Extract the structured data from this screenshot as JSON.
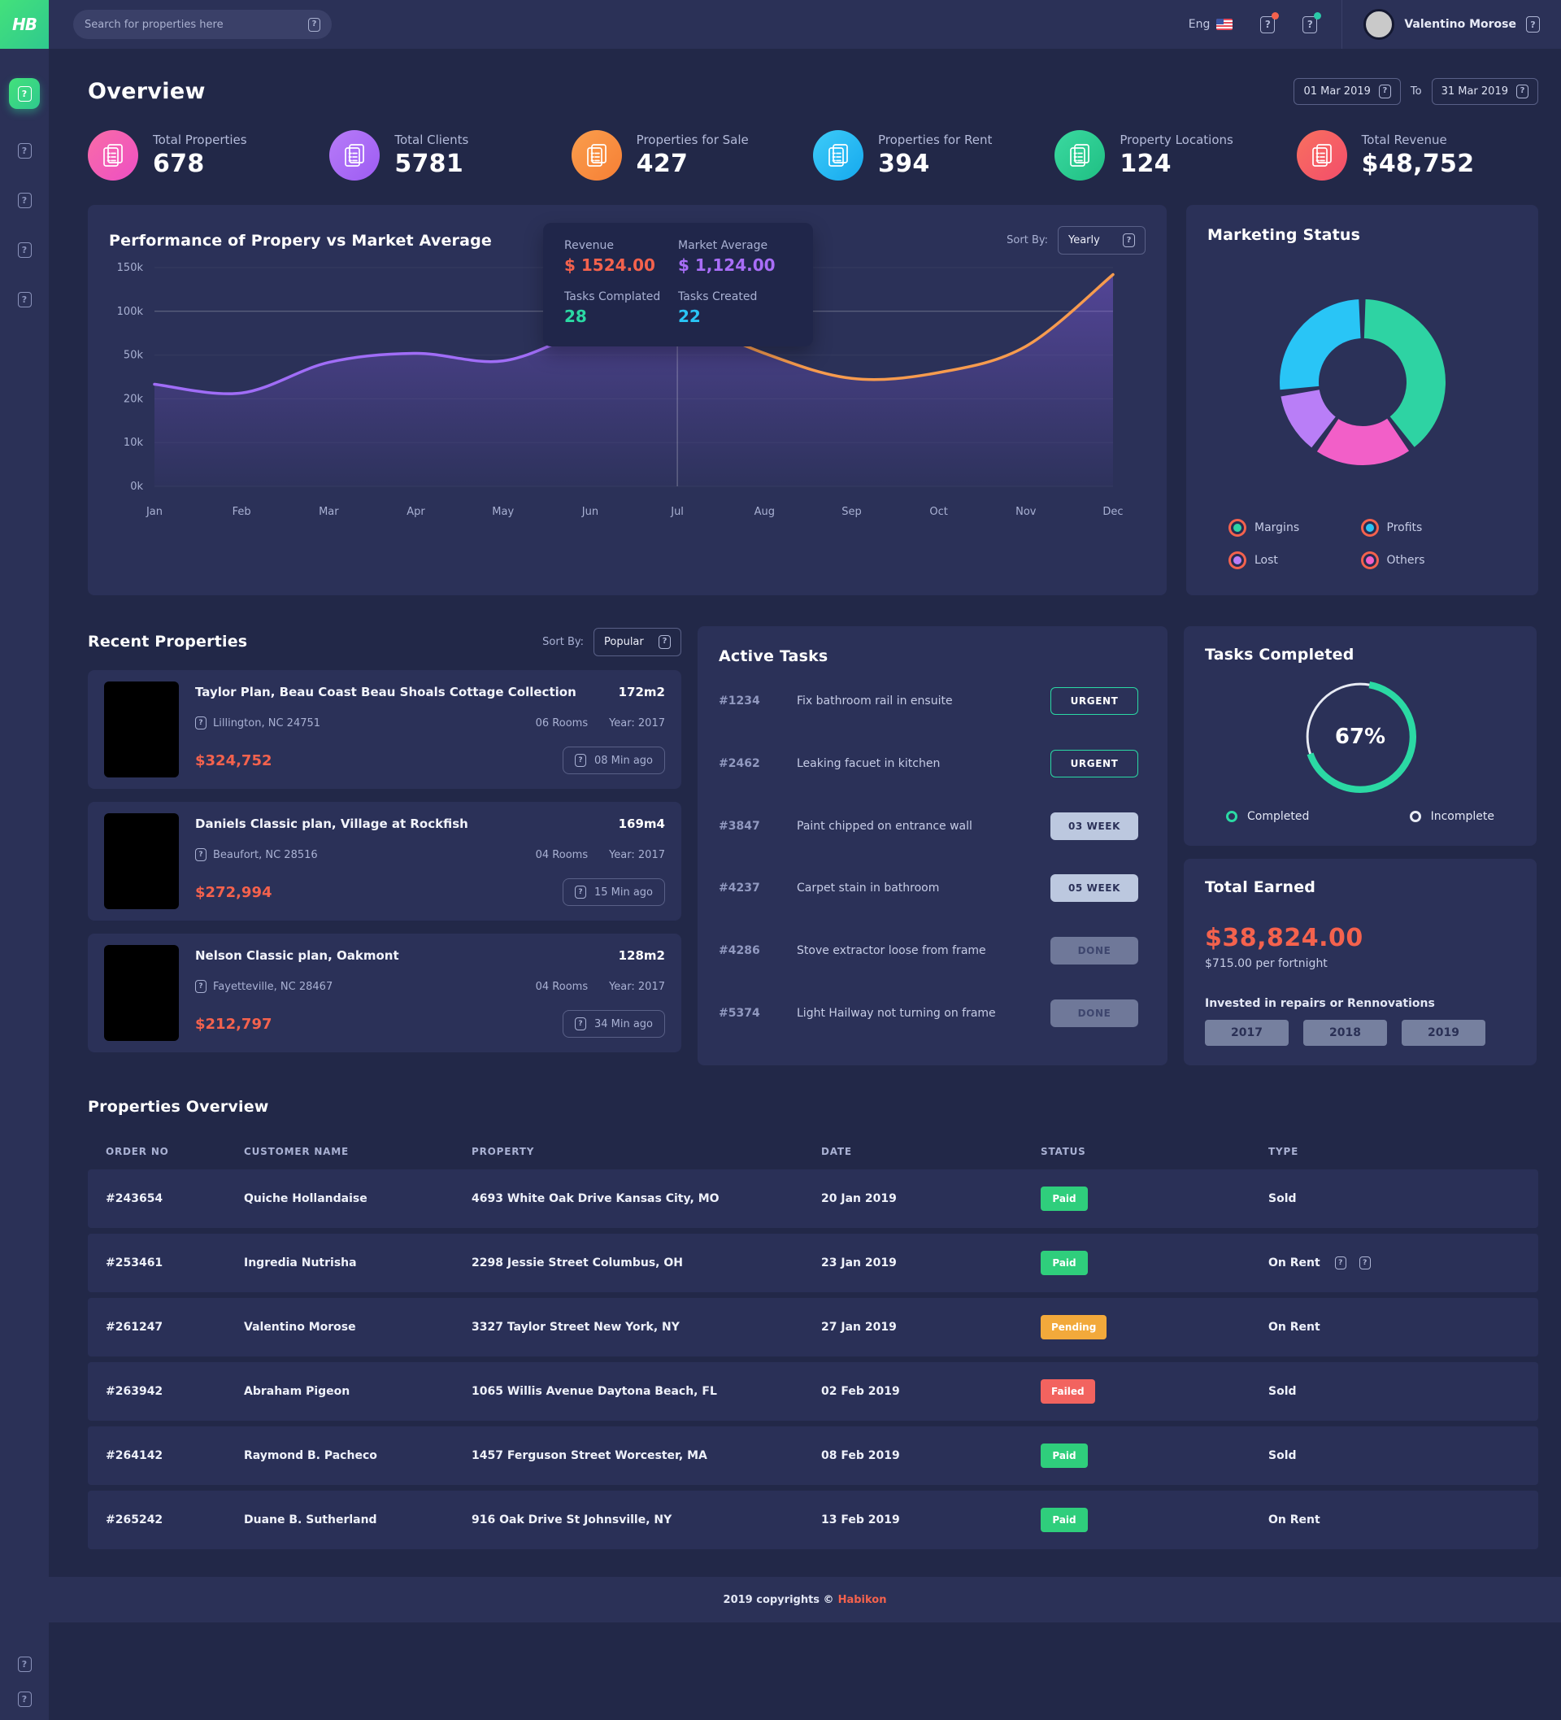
{
  "topbar": {
    "search_placeholder": "Search for properties here",
    "language": "Eng",
    "user_name": "Valentino Morose"
  },
  "icons": {
    "glyph": "?"
  },
  "sidebar": {
    "items": [
      "dashboard",
      "properties",
      "clients",
      "reports",
      "settings"
    ],
    "bottom": [
      "help",
      "logout"
    ]
  },
  "header": {
    "title": "Overview",
    "date_from": "01 Mar 2019",
    "to_label": "To",
    "date_to": "31 Mar 2019"
  },
  "stats": [
    {
      "label": "Total Properties",
      "value": "678",
      "c1": "#F86CA7",
      "c2": "#EE4FC4"
    },
    {
      "label": "Total Clients",
      "value": "5781",
      "c1": "#B77BF8",
      "c2": "#9D5CF3"
    },
    {
      "label": "Properties for Sale",
      "value": "427",
      "c1": "#FA9E4D",
      "c2": "#F67F35"
    },
    {
      "label": "Properties for Rent",
      "value": "394",
      "c1": "#3ECBF8",
      "c2": "#15A9EE"
    },
    {
      "label": "Property Locations",
      "value": "124",
      "c1": "#3BD9A0",
      "c2": "#1FBF83"
    },
    {
      "label": "Total Revenue",
      "value": "$48,752",
      "c1": "#F8705F",
      "c2": "#F34D6B"
    }
  ],
  "performance": {
    "title": "Performance of Propery vs Market Average",
    "sort_label": "Sort By:",
    "sort_value": "Yearly",
    "tooltip": {
      "revenue_label": "Revenue",
      "revenue_value": "$ 1524.00",
      "market_label": "Market Average",
      "market_value": "$ 1,124.00",
      "tasks_completed_label": "Tasks Complated",
      "tasks_completed_value": "28",
      "tasks_created_label": "Tasks Created",
      "tasks_created_value": "22"
    }
  },
  "marketing": {
    "title": "Marketing  Status",
    "legend": [
      {
        "label": "Margins",
        "color": "#2ED3A3"
      },
      {
        "label": "Profits",
        "color": "#29C5F6"
      },
      {
        "label": "Lost",
        "color": "#B97EF7"
      },
      {
        "label": "Others",
        "color": "#F25FC8"
      }
    ]
  },
  "recent": {
    "title": "Recent Properties",
    "sort_label": "Sort By:",
    "sort_value": "Popular",
    "items": [
      {
        "title": "Taylor Plan, Beau Coast Beau Shoals Cottage Collection",
        "area": "172m2",
        "location": "Lillington, NC 24751",
        "rooms": "06 Rooms",
        "year": "Year:  2017",
        "price": "$324,752",
        "time": "08 Min ago"
      },
      {
        "title": "Daniels Classic plan, Village at Rockfish",
        "area": "169m4",
        "location": "Beaufort, NC 28516",
        "rooms": "04 Rooms",
        "year": "Year:  2017",
        "price": "$272,994",
        "time": "15 Min ago"
      },
      {
        "title": "Nelson Classic plan, Oakmont",
        "area": "128m2",
        "location": "Fayetteville, NC 28467",
        "rooms": "04 Rooms",
        "year": "Year:  2017",
        "price": "$212,797",
        "time": "34 Min ago"
      }
    ]
  },
  "active_tasks": {
    "title": "Active Tasks",
    "items": [
      {
        "id": "#1234",
        "text": "Fix bathroom rail in ensuite",
        "badge": "URGENT",
        "variant": "urgent"
      },
      {
        "id": "#2462",
        "text": "Leaking facuet in kitchen",
        "badge": "URGENT",
        "variant": "urgent"
      },
      {
        "id": "#3847",
        "text": "Paint chipped on entrance wall",
        "badge": "03 WEEK",
        "variant": "week"
      },
      {
        "id": "#4237",
        "text": "Carpet stain in bathroom",
        "badge": "05 WEEK",
        "variant": "week"
      },
      {
        "id": "#4286",
        "text": "Stove extractor loose from frame",
        "badge": "DONE",
        "variant": "done"
      },
      {
        "id": "#5374",
        "text": "Light Hailway not turning on frame",
        "badge": "DONE",
        "variant": "done"
      }
    ]
  },
  "tasks_completed": {
    "title": "Tasks Completed",
    "percent": "67%",
    "legend_completed": "Completed",
    "legend_incomplete": "Incomplete"
  },
  "total_earned": {
    "title": "Total Earned",
    "amount": "$38,824.00",
    "sub": "$715.00 per fortnight",
    "note": "Invested in repairs or Rennovations",
    "years": [
      "2017",
      "2018",
      "2019"
    ]
  },
  "table": {
    "title": "Properties Overview",
    "headers": [
      "ORDER NO",
      "CUSTOMER NAME",
      "PROPERTY",
      "DATE",
      "STATUS",
      "TYPE"
    ],
    "rows": [
      {
        "order": "#243654",
        "customer": "Quiche Hollandaise",
        "property": "4693 White Oak Drive Kansas City, MO",
        "date": "20 Jan 2019",
        "status": "Paid",
        "status_color": "#2FCE7C",
        "type": "Sold",
        "actions": false
      },
      {
        "order": "#253461",
        "customer": "Ingredia Nutrisha",
        "property": "2298 Jessie Street Columbus, OH",
        "date": "23 Jan 2019",
        "status": "Paid",
        "status_color": "#2FCE7C",
        "type": "On Rent",
        "actions": true
      },
      {
        "order": "#261247",
        "customer": "Valentino Morose",
        "property": "3327 Taylor Street New York, NY",
        "date": "27 Jan 2019",
        "status": "Pending",
        "status_color": "#F2A93B",
        "type": "On Rent",
        "actions": false
      },
      {
        "order": "#263942",
        "customer": "Abraham Pigeon",
        "property": "1065 Willis Avenue Daytona Beach, FL",
        "date": "02 Feb 2019",
        "status": "Failed",
        "status_color": "#F2635F",
        "type": "Sold",
        "actions": false
      },
      {
        "order": "#264142",
        "customer": "Raymond B. Pacheco",
        "property": "1457 Ferguson Street Worcester, MA",
        "date": "08 Feb 2019",
        "status": "Paid",
        "status_color": "#2FCE7C",
        "type": "Sold",
        "actions": false
      },
      {
        "order": "#265242",
        "customer": "Duane B. Sutherland",
        "property": "916 Oak Drive St Johnsville, NY",
        "date": "13 Feb 2019",
        "status": "Paid",
        "status_color": "#2FCE7C",
        "type": "On Rent",
        "actions": false
      }
    ]
  },
  "footer": {
    "text": "2019 copyrights ©",
    "brand": "Habikon"
  },
  "chart_data": [
    {
      "type": "line",
      "title": "Performance of Propery vs Market Average",
      "x": [
        "Jan",
        "Feb",
        "Mar",
        "Apr",
        "May",
        "Jun",
        "Jul",
        "Aug",
        "Sep",
        "Oct",
        "Nov",
        "Dec"
      ],
      "yticks": [
        "0k",
        "10k",
        "20k",
        "50k",
        "100k",
        "150k"
      ],
      "ytick_values": [
        0,
        10,
        20,
        50,
        100,
        150
      ],
      "values_k": [
        30,
        24,
        45,
        52,
        46,
        78,
        95,
        52,
        34,
        38,
        60,
        142
      ],
      "series": [
        {
          "name": "Market Average",
          "color": "#A06DF7",
          "segment": "Jan-Jul"
        },
        {
          "name": "Revenue",
          "color": "#F79B4E",
          "segment": "Jul-Dec"
        }
      ],
      "marker": {
        "month": "Jul",
        "value_k": 95
      },
      "split_index": 6
    },
    {
      "type": "pie",
      "title": "Marketing Status",
      "segments": [
        {
          "label": "Margins",
          "value": 40,
          "color": "#2ED3A3"
        },
        {
          "label": "Others",
          "value": 20,
          "color": "#F25FC8"
        },
        {
          "label": "Lost",
          "value": 13,
          "color": "#B97EF7"
        },
        {
          "label": "Profits",
          "value": 27,
          "color": "#29C5F6"
        }
      ]
    },
    {
      "type": "progress",
      "title": "Tasks Completed",
      "percent": 67,
      "completed_color": "#2BD9A4",
      "incomplete_color": "#E8EBF4"
    }
  ]
}
